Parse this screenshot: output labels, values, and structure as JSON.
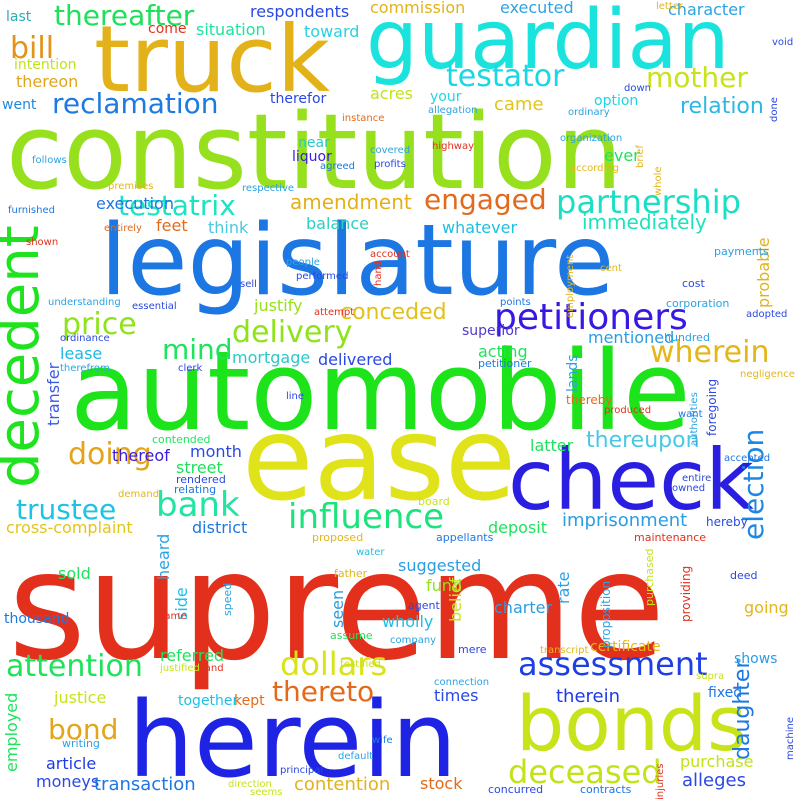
{
  "words": [
    {
      "text": "supreme",
      "color": "#e3301c"
    },
    {
      "text": "constitution",
      "color": "#97e01d"
    },
    {
      "text": "automobile",
      "color": "#1de31a"
    },
    {
      "text": "legislature",
      "color": "#1d77e3"
    },
    {
      "text": "herein",
      "color": "#1f23e3"
    },
    {
      "text": "ease",
      "color": "#e0e31a"
    },
    {
      "text": "guardian",
      "color": "#19e3dc"
    },
    {
      "text": "truck",
      "color": "#e3b21a"
    },
    {
      "text": "check",
      "color": "#2a1ee0"
    },
    {
      "text": "bonds",
      "color": "#c8e31a"
    },
    {
      "text": "decedent",
      "color": "#1fe31e"
    },
    {
      "text": "petitioners",
      "color": "#3819e3"
    },
    {
      "text": "partnership",
      "color": "#1adfc4"
    },
    {
      "text": "reclamation",
      "color": "#1d7ae3"
    },
    {
      "text": "testator",
      "color": "#1bd6e3"
    },
    {
      "text": "mother",
      "color": "#c8e31a"
    },
    {
      "text": "thereafter",
      "color": "#1ee05a"
    },
    {
      "text": "bill",
      "color": "#e3931a"
    },
    {
      "text": "testatrix",
      "color": "#1ce3c2"
    },
    {
      "text": "engaged",
      "color": "#e3691c"
    },
    {
      "text": "price",
      "color": "#8fe31a"
    },
    {
      "text": "delivery",
      "color": "#8fe31a"
    },
    {
      "text": "mind",
      "color": "#1ee35d"
    },
    {
      "text": "wherein",
      "color": "#e3b61a"
    },
    {
      "text": "influence",
      "color": "#1de37c"
    },
    {
      "text": "doing",
      "color": "#e3a41a"
    },
    {
      "text": "bank",
      "color": "#25e3a1"
    },
    {
      "text": "trustee",
      "color": "#1dc3e3"
    },
    {
      "text": "election",
      "color": "#1d88e3"
    },
    {
      "text": "assessment",
      "color": "#1e3fe3"
    },
    {
      "text": "deceased",
      "color": "#c0e31a"
    },
    {
      "text": "dollars",
      "color": "#d8e31a"
    },
    {
      "text": "attention",
      "color": "#1ee35a"
    },
    {
      "text": "thereto",
      "color": "#e3691c"
    },
    {
      "text": "bond",
      "color": "#e3a61a"
    },
    {
      "text": "daughter",
      "color": "#1d78e3"
    },
    {
      "text": "thereupon",
      "color": "#47c9e3"
    },
    {
      "text": "imprisonment",
      "color": "#2a9de3"
    },
    {
      "text": "amendment",
      "color": "#e3b01a"
    },
    {
      "text": "conceded",
      "color": "#e3c01a"
    },
    {
      "text": "immediately",
      "color": "#1de3bc"
    },
    {
      "text": "relation",
      "color": "#2cb8e3"
    },
    {
      "text": "came",
      "color": "#e3c51a"
    },
    {
      "text": "respondents",
      "color": "#2a48e3"
    },
    {
      "text": "commission",
      "color": "#e3b21a"
    },
    {
      "text": "executed",
      "color": "#2fa3e3"
    },
    {
      "text": "character",
      "color": "#2ba3e3"
    },
    {
      "text": "situation",
      "color": "#1fe3a0"
    },
    {
      "text": "toward",
      "color": "#2ad0e3"
    },
    {
      "text": "come",
      "color": "#e3301c"
    },
    {
      "text": "last",
      "color": "#2dacb3"
    },
    {
      "text": "intention",
      "color": "#c0e31a"
    },
    {
      "text": "thereon",
      "color": "#e3a41a"
    },
    {
      "text": "went",
      "color": "#1d88e3"
    },
    {
      "text": "therefor",
      "color": "#2a48e3"
    },
    {
      "text": "acres",
      "color": "#c0e31a"
    },
    {
      "text": "your",
      "color": "#23d5e3"
    },
    {
      "text": "option",
      "color": "#1bd6e3"
    },
    {
      "text": "ever",
      "color": "#1ee35d"
    },
    {
      "text": "near",
      "color": "#2bc9c9"
    },
    {
      "text": "liquor",
      "color": "#3b1ae3"
    },
    {
      "text": "feet",
      "color": "#e36a1a"
    },
    {
      "text": "think",
      "color": "#47c9e3"
    },
    {
      "text": "balance",
      "color": "#2bd0c3"
    },
    {
      "text": "whatever",
      "color": "#1dbfe3"
    },
    {
      "text": "execution",
      "color": "#1d78e3"
    },
    {
      "text": "justify",
      "color": "#97e01d"
    },
    {
      "text": "lease",
      "color": "#1db8e3"
    },
    {
      "text": "mortgage",
      "color": "#2bc9c9"
    },
    {
      "text": "delivered",
      "color": "#2a48e3"
    },
    {
      "text": "acting",
      "color": "#1ee35d"
    },
    {
      "text": "mentioned",
      "color": "#2a9de3"
    },
    {
      "text": "superior",
      "color": "#4d3acc"
    },
    {
      "text": "probable",
      "color": "#e3b21a"
    },
    {
      "text": "transfer",
      "color": "#3b5ae3"
    },
    {
      "text": "thereof",
      "color": "#3b1ae3"
    },
    {
      "text": "month",
      "color": "#2a48e3"
    },
    {
      "text": "street",
      "color": "#1ee05a"
    },
    {
      "text": "latter",
      "color": "#1ee35d"
    },
    {
      "text": "heard",
      "color": "#2ba3e3"
    },
    {
      "text": "district",
      "color": "#1d78e3"
    },
    {
      "text": "cross-complaint",
      "color": "#e3c51a"
    },
    {
      "text": "deposit",
      "color": "#1ee35d"
    },
    {
      "text": "suggested",
      "color": "#2a9de3"
    },
    {
      "text": "fund",
      "color": "#8fe31a"
    },
    {
      "text": "sold",
      "color": "#1ee35d"
    },
    {
      "text": "side",
      "color": "#1dbfe3"
    },
    {
      "text": "charter",
      "color": "#2a9de3"
    },
    {
      "text": "going",
      "color": "#e3b61a"
    },
    {
      "text": "rate",
      "color": "#2ba3e3"
    },
    {
      "text": "wholly",
      "color": "#1dbfe3"
    },
    {
      "text": "belief",
      "color": "#c8e31a"
    },
    {
      "text": "seen",
      "color": "#2a9de3"
    },
    {
      "text": "thousand",
      "color": "#1d78e3"
    },
    {
      "text": "referred",
      "color": "#1ee35d"
    },
    {
      "text": "together",
      "color": "#1dbfe3"
    },
    {
      "text": "justice",
      "color": "#c8e31a"
    },
    {
      "text": "times",
      "color": "#2a48e3"
    },
    {
      "text": "therein",
      "color": "#1d3ae3"
    },
    {
      "text": "shows",
      "color": "#2a9de3"
    },
    {
      "text": "fixed",
      "color": "#1d78e3"
    },
    {
      "text": "kept",
      "color": "#e36a1a"
    },
    {
      "text": "employed",
      "color": "#1ee35d"
    },
    {
      "text": "article",
      "color": "#1d3ae3"
    },
    {
      "text": "moneys",
      "color": "#2a48e3"
    },
    {
      "text": "transaction",
      "color": "#1d78e3"
    },
    {
      "text": "contention",
      "color": "#e3b21a"
    },
    {
      "text": "stock",
      "color": "#e36a1a"
    },
    {
      "text": "alleges",
      "color": "#2a48e3"
    },
    {
      "text": "purchase",
      "color": "#c0e31a"
    },
    {
      "text": "certificate",
      "color": "#e3b61a"
    },
    {
      "text": "proposition",
      "color": "#2ba3e3"
    },
    {
      "text": "providing",
      "color": "#e3301c"
    },
    {
      "text": "foregoing",
      "color": "#2a48e3"
    },
    {
      "text": "authorities",
      "color": "#2ba3e3"
    },
    {
      "text": "thereby",
      "color": "#e36a1a"
    },
    {
      "text": "lands",
      "color": "#2ba3e3"
    },
    {
      "text": "petitioner",
      "color": "#1d78e3"
    },
    {
      "text": "contended",
      "color": "#1ee35d"
    },
    {
      "text": "rendered",
      "color": "#2a48e3"
    },
    {
      "text": "relating",
      "color": "#1d78e3"
    },
    {
      "text": "demand",
      "color": "#e3b61a"
    },
    {
      "text": "board",
      "color": "#c8e31a"
    },
    {
      "text": "hereby",
      "color": "#2a48e3"
    },
    {
      "text": "maintenance",
      "color": "#e3301c"
    },
    {
      "text": "appellants",
      "color": "#1d78e3"
    },
    {
      "text": "proposed",
      "color": "#e3b61a"
    },
    {
      "text": "water",
      "color": "#1dbfe3"
    },
    {
      "text": "father",
      "color": "#e3b61a"
    },
    {
      "text": "deed",
      "color": "#2a48e3"
    },
    {
      "text": "purchased",
      "color": "#c8e31a"
    },
    {
      "text": "speed",
      "color": "#2ba3e3"
    },
    {
      "text": "name",
      "color": "#e3301c"
    },
    {
      "text": "agent",
      "color": "#2a48e3"
    },
    {
      "text": "assume",
      "color": "#1ee35d"
    },
    {
      "text": "company",
      "color": "#2ba3e3"
    },
    {
      "text": "transcript",
      "color": "#e3b61a"
    },
    {
      "text": "mere",
      "color": "#2a48e3"
    },
    {
      "text": "supra",
      "color": "#c8e31a"
    },
    {
      "text": "testified",
      "color": "#c8e31a"
    },
    {
      "text": "justified",
      "color": "#c8e31a"
    },
    {
      "text": "land",
      "color": "#e3301c"
    },
    {
      "text": "connection",
      "color": "#2ba3e3"
    },
    {
      "text": "wife",
      "color": "#1d78e3"
    },
    {
      "text": "writing",
      "color": "#2ba3e3"
    },
    {
      "text": "principal",
      "color": "#2a48e3"
    },
    {
      "text": "default",
      "color": "#2ba3e3"
    },
    {
      "text": "direction",
      "color": "#c8e31a"
    },
    {
      "text": "seems",
      "color": "#c8e31a"
    },
    {
      "text": "concurred",
      "color": "#2a48e3"
    },
    {
      "text": "contracts",
      "color": "#1d78e3"
    },
    {
      "text": "injuries",
      "color": "#e3301c"
    },
    {
      "text": "machine",
      "color": "#2a48e3"
    },
    {
      "text": "owned",
      "color": "#2a48e3"
    },
    {
      "text": "accepted",
      "color": "#1d78e3"
    },
    {
      "text": "entire",
      "color": "#2a48e3"
    },
    {
      "text": "want",
      "color": "#1d78e3"
    },
    {
      "text": "produced",
      "color": "#e3301c"
    },
    {
      "text": "negligence",
      "color": "#e3b61a"
    },
    {
      "text": "adopted",
      "color": "#2a48e3"
    },
    {
      "text": "hundred",
      "color": "#2ba3e3"
    },
    {
      "text": "corporation",
      "color": "#2ba3e3"
    },
    {
      "text": "points",
      "color": "#1d78e3"
    },
    {
      "text": "cost",
      "color": "#2a48e3"
    },
    {
      "text": "cent",
      "color": "#e3b61a"
    },
    {
      "text": "payments",
      "color": "#2a9de3"
    },
    {
      "text": "whole",
      "color": "#e3b61a"
    },
    {
      "text": "according",
      "color": "#e3b61a"
    },
    {
      "text": "brief",
      "color": "#e3b61a"
    },
    {
      "text": "void",
      "color": "#2a48e3"
    },
    {
      "text": "letter",
      "color": "#e3b61a"
    },
    {
      "text": "done",
      "color": "#2a48e3"
    },
    {
      "text": "down",
      "color": "#2a48e3"
    },
    {
      "text": "ordinary",
      "color": "#2ba3e3"
    },
    {
      "text": "allegation",
      "color": "#2ba3e3"
    },
    {
      "text": "organization",
      "color": "#2ba3e3"
    },
    {
      "text": "instance",
      "color": "#e36a1a"
    },
    {
      "text": "highway",
      "color": "#e3301c"
    },
    {
      "text": "covered",
      "color": "#2ba3e3"
    },
    {
      "text": "profits",
      "color": "#2a48e3"
    },
    {
      "text": "agreed",
      "color": "#1d78e3"
    },
    {
      "text": "follows",
      "color": "#2ba3e3"
    },
    {
      "text": "premises",
      "color": "#e3b61a"
    },
    {
      "text": "respective",
      "color": "#2ba3e3"
    },
    {
      "text": "furnished",
      "color": "#1d78e3"
    },
    {
      "text": "entirely",
      "color": "#e36a1a"
    },
    {
      "text": "shown",
      "color": "#e3301c"
    },
    {
      "text": "people",
      "color": "#2ba3e3"
    },
    {
      "text": "performed",
      "color": "#2a48e3"
    },
    {
      "text": "account",
      "color": "#e3301c"
    },
    {
      "text": "hand",
      "color": "#e3301c"
    },
    {
      "text": "sell",
      "color": "#2a48e3"
    },
    {
      "text": "essential",
      "color": "#2a48e3"
    },
    {
      "text": "understanding",
      "color": "#2ba3e3"
    },
    {
      "text": "attempt",
      "color": "#e3301c"
    },
    {
      "text": "employment",
      "color": "#e3b61a"
    },
    {
      "text": "ordinance",
      "color": "#2a48e3"
    },
    {
      "text": "therefrom",
      "color": "#2ba3e3"
    },
    {
      "text": "clerk",
      "color": "#2a48e3"
    },
    {
      "text": "line",
      "color": "#2a48e3"
    }
  ]
}
